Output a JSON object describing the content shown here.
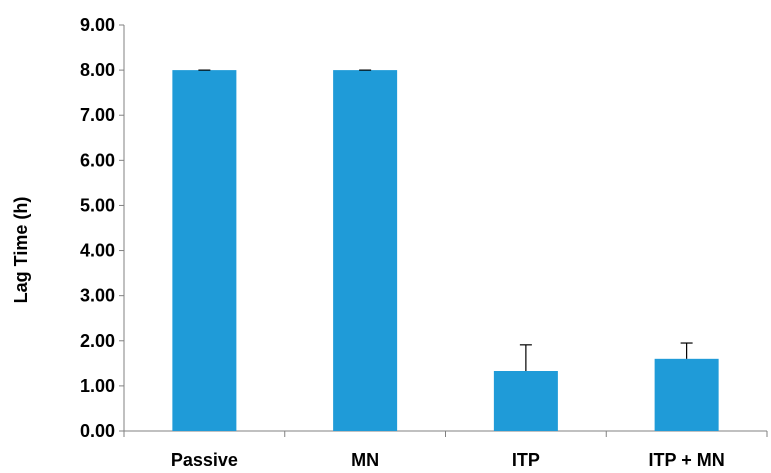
{
  "chart_data": {
    "type": "bar",
    "title": "",
    "xlabel": "",
    "ylabel": "Lag Time (h)",
    "categories": [
      "Passive",
      "MN",
      "ITP",
      "ITP + MN"
    ],
    "values": [
      8.0,
      8.0,
      1.33,
      1.6
    ],
    "error_plus": [
      0.0,
      0.0,
      0.58,
      0.35
    ],
    "ylim": [
      0,
      9
    ],
    "yticks": [
      "0.00",
      "1.00",
      "2.00",
      "3.00",
      "4.00",
      "5.00",
      "6.00",
      "7.00",
      "8.00",
      "9.00"
    ],
    "bar_color": "#1f9bd8",
    "grid": false,
    "legend": "none"
  }
}
